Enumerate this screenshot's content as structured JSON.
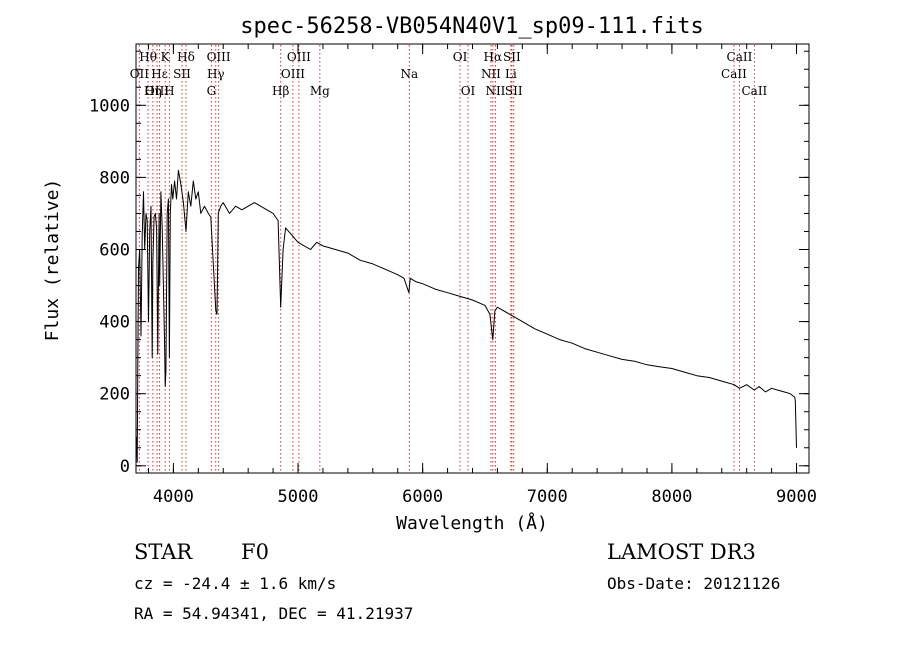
{
  "chart_data": {
    "type": "line",
    "title": "spec-56258-VB054N40V1_sp09-111.fits",
    "xlabel": "Wavelength (Å)",
    "ylabel": "Flux (relative)",
    "xlim": [
      3700,
      9100
    ],
    "ylim": [
      -20,
      1170
    ],
    "xticks": [
      4000,
      5000,
      6000,
      7000,
      8000,
      9000
    ],
    "yticks": [
      0,
      200,
      400,
      600,
      800,
      1000
    ],
    "x_minor_step": 200,
    "y_minor_step": 50,
    "grid": false,
    "series": [
      {
        "name": "spectrum",
        "color": "#000000",
        "x": [
          3705,
          3710,
          3715,
          3720,
          3730,
          3740,
          3750,
          3760,
          3770,
          3780,
          3790,
          3800,
          3810,
          3820,
          3830,
          3835,
          3845,
          3855,
          3865,
          3875,
          3885,
          3890,
          3900,
          3910,
          3920,
          3930,
          3934,
          3940,
          3950,
          3960,
          3968,
          3975,
          3985,
          3995,
          4010,
          4025,
          4040,
          4060,
          4080,
          4101,
          4120,
          4140,
          4160,
          4180,
          4200,
          4220,
          4250,
          4280,
          4300,
          4320,
          4340,
          4350,
          4360,
          4380,
          4400,
          4450,
          4500,
          4550,
          4600,
          4650,
          4700,
          4750,
          4800,
          4840,
          4861,
          4880,
          4900,
          4950,
          5000,
          5050,
          5100,
          5150,
          5200,
          5300,
          5400,
          5500,
          5600,
          5700,
          5800,
          5850,
          5890,
          5900,
          5950,
          6000,
          6100,
          6200,
          6300,
          6400,
          6500,
          6540,
          6563,
          6580,
          6600,
          6700,
          6800,
          6900,
          7000,
          7100,
          7200,
          7300,
          7400,
          7500,
          7600,
          7700,
          7800,
          7900,
          8000,
          8100,
          8200,
          8300,
          8400,
          8500,
          8542,
          8600,
          8662,
          8700,
          8750,
          8800,
          8850,
          8900,
          8950,
          8985,
          8990,
          9000
        ],
        "values": [
          80,
          10,
          320,
          550,
          600,
          360,
          640,
          760,
          600,
          700,
          680,
          400,
          650,
          720,
          300,
          560,
          690,
          700,
          660,
          310,
          700,
          500,
          760,
          660,
          500,
          320,
          220,
          260,
          700,
          740,
          300,
          700,
          780,
          740,
          790,
          740,
          820,
          780,
          730,
          650,
          760,
          720,
          790,
          740,
          760,
          700,
          720,
          700,
          690,
          560,
          430,
          420,
          700,
          720,
          730,
          700,
          720,
          710,
          720,
          730,
          720,
          710,
          700,
          680,
          440,
          600,
          660,
          640,
          620,
          610,
          600,
          620,
          610,
          600,
          590,
          570,
          560,
          545,
          530,
          520,
          480,
          520,
          510,
          505,
          490,
          480,
          470,
          460,
          445,
          420,
          350,
          430,
          440,
          420,
          400,
          380,
          365,
          350,
          340,
          325,
          315,
          305,
          295,
          290,
          280,
          275,
          270,
          260,
          250,
          245,
          235,
          225,
          215,
          225,
          210,
          220,
          205,
          215,
          210,
          205,
          200,
          190,
          180,
          50
        ]
      }
    ],
    "lines": [
      {
        "label": "Hθ",
        "x": 3797,
        "row": 1
      },
      {
        "label": "OII",
        "x": 3727,
        "row": 2
      },
      {
        "label": "OIII",
        "x": 3869,
        "row": 3
      },
      {
        "label": "K",
        "x": 3934,
        "row": 1
      },
      {
        "label": "Hε",
        "x": 3889,
        "row": 2
      },
      {
        "label": "Hη",
        "x": 3835,
        "row": 3
      },
      {
        "label": "SII",
        "x": 4069,
        "row": 2
      },
      {
        "label": "H",
        "x": 3968,
        "row": 3
      },
      {
        "label": "Hδ",
        "x": 4101,
        "row": 1
      },
      {
        "label": "OIII",
        "x": 4363,
        "row": 1
      },
      {
        "label": "Hγ",
        "x": 4340,
        "row": 2
      },
      {
        "label": "G",
        "x": 4305,
        "row": 3
      },
      {
        "label": "OIII",
        "x": 5007,
        "row": 1
      },
      {
        "label": "OIII",
        "x": 4959,
        "row": 2
      },
      {
        "label": "Hβ",
        "x": 4861,
        "row": 3
      },
      {
        "label": "Mg",
        "x": 5175,
        "row": 3
      },
      {
        "label": "Na",
        "x": 5893,
        "row": 2
      },
      {
        "label": "OI",
        "x": 6300,
        "row": 1
      },
      {
        "label": "OI",
        "x": 6364,
        "row": 3
      },
      {
        "label": "Hα",
        "x": 6563,
        "row": 1
      },
      {
        "label": "SII",
        "x": 6716,
        "row": 1
      },
      {
        "label": "NII",
        "x": 6548,
        "row": 2
      },
      {
        "label": "Li",
        "x": 6708,
        "row": 2
      },
      {
        "label": "NII",
        "x": 6584,
        "row": 3
      },
      {
        "label": "SII",
        "x": 6731,
        "row": 3
      },
      {
        "label": "CaII",
        "x": 8542,
        "row": 1
      },
      {
        "label": "CaII",
        "x": 8498,
        "row": 2
      },
      {
        "label": "CaII",
        "x": 8662,
        "row": 3
      }
    ]
  },
  "info": {
    "object_type": "STAR",
    "subclass": "F0",
    "survey": "LAMOST DR3",
    "redshift": "cz = -24.4 ± 1.6 km/s",
    "obs_date": "Obs-Date: 20121126",
    "coords": "RA =  54.94341, DEC =  41.21937"
  },
  "colors": {
    "spectrum": "#000000",
    "line_markers": "#cc3333",
    "axes": "#000000"
  }
}
